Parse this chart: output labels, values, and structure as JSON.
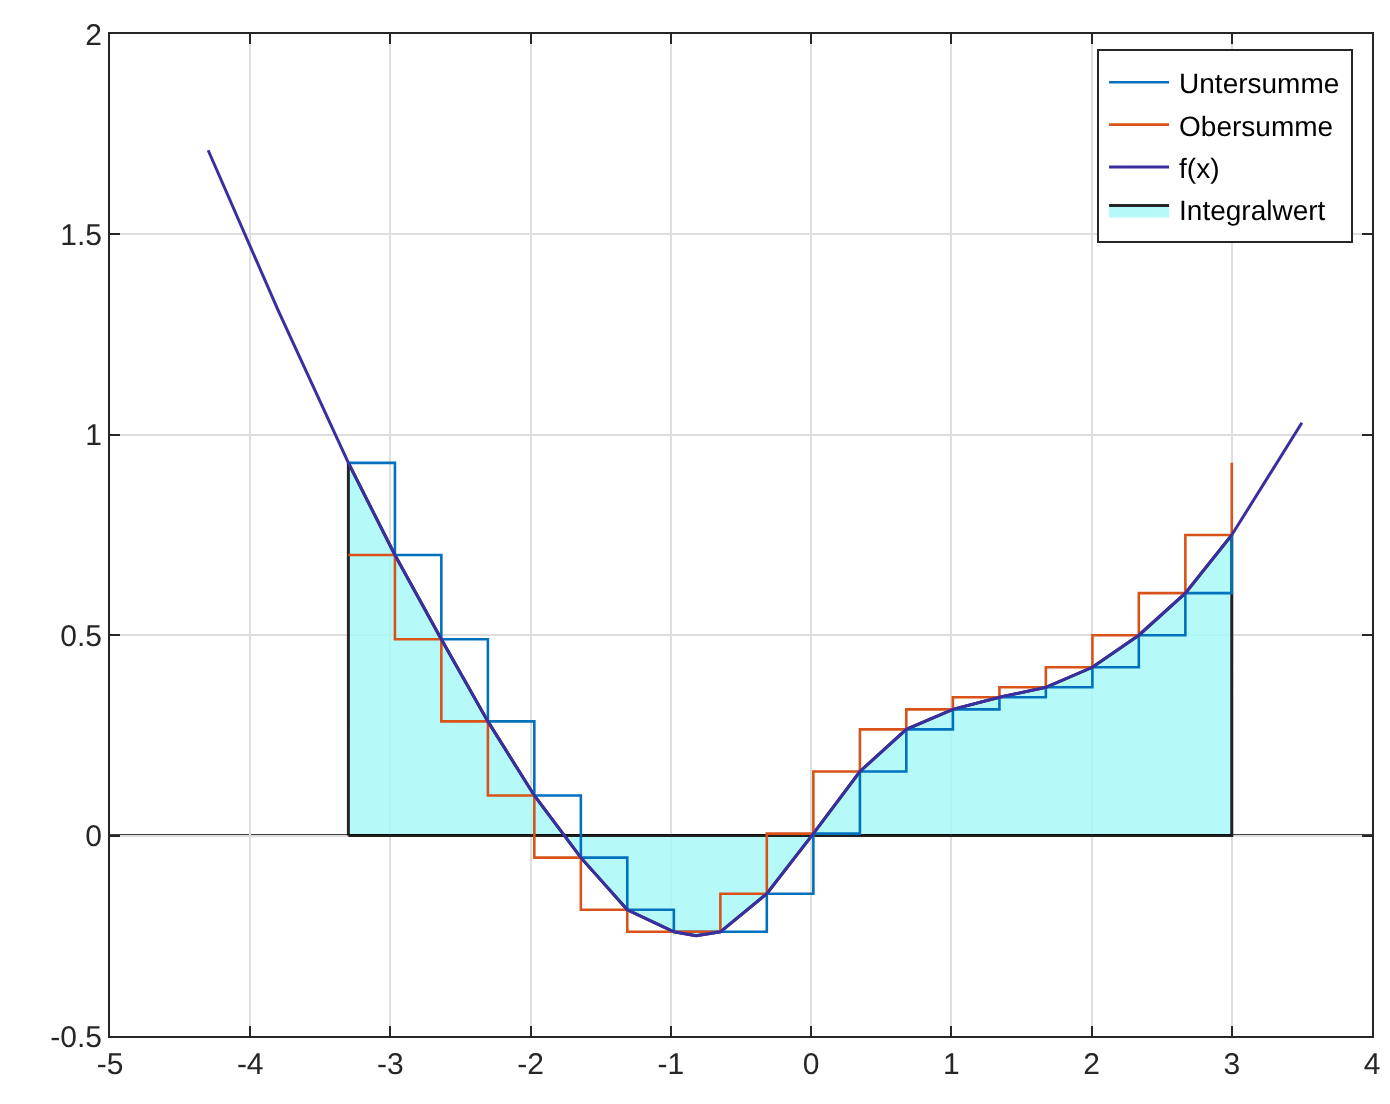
{
  "chart_data": {
    "type": "line",
    "xlim": [
      -5,
      4
    ],
    "xticks": [
      -5,
      -4,
      -3,
      -2,
      -1,
      0,
      1,
      2,
      3,
      4
    ],
    "ylim": [
      -0.5,
      2
    ],
    "yticks": [
      -0.5,
      0,
      0.5,
      1,
      1.5,
      2
    ],
    "grid": true,
    "legend": "top right",
    "ref_lines": [
      {
        "axis": "y",
        "value": 0,
        "color": "#000000"
      }
    ],
    "series": [
      {
        "name": "Untersumme",
        "type": "step",
        "color": "#0072bd",
        "x": [
          -3.3,
          -2.968,
          -2.637,
          -2.305,
          -1.974,
          -1.642,
          -1.311,
          -0.979,
          -0.647,
          -0.316,
          0.016,
          0.348,
          0.679,
          1.011,
          1.343,
          1.674,
          2.006,
          2.337,
          2.669,
          3.0
        ],
        "values": [
          0.93,
          0.7,
          0.49,
          0.285,
          0.1,
          -0.055,
          -0.185,
          -0.24,
          -0.24,
          -0.145,
          0.005,
          0.16,
          0.265,
          0.315,
          0.345,
          0.37,
          0.42,
          0.5,
          0.605,
          0.75
        ]
      },
      {
        "name": "Obersumme",
        "type": "step",
        "color": "#d95319",
        "x": [
          -3.3,
          -2.968,
          -2.637,
          -2.305,
          -1.974,
          -1.642,
          -1.311,
          -0.979,
          -0.647,
          -0.316,
          0.016,
          0.348,
          0.679,
          1.011,
          1.343,
          1.674,
          2.006,
          2.337,
          2.669,
          3.0
        ],
        "values": [
          0.7,
          0.49,
          0.285,
          0.1,
          -0.055,
          -0.185,
          -0.24,
          -0.24,
          -0.145,
          0.005,
          0.16,
          0.265,
          0.315,
          0.345,
          0.37,
          0.42,
          0.5,
          0.605,
          0.75,
          0.93
        ]
      },
      {
        "name": "f(x)",
        "type": "line",
        "color": "#3a2fa0",
        "x": [
          -4.3,
          -3.8,
          -3.3,
          -2.968,
          -2.637,
          -2.305,
          -1.974,
          -1.642,
          -1.311,
          -0.979,
          -0.82,
          -0.647,
          -0.316,
          0.016,
          0.348,
          0.679,
          1.011,
          1.343,
          1.674,
          2.006,
          2.337,
          2.669,
          3.0,
          3.5
        ],
        "values": [
          1.71,
          1.31,
          0.93,
          0.7,
          0.49,
          0.285,
          0.1,
          -0.055,
          -0.185,
          -0.24,
          -0.25,
          -0.24,
          -0.145,
          0.005,
          0.16,
          0.265,
          0.315,
          0.345,
          0.37,
          0.42,
          0.5,
          0.605,
          0.75,
          1.03
        ]
      },
      {
        "name": "Integralwert",
        "type": "area",
        "color": "#aaf8f8",
        "x": [
          -3.3,
          -2.968,
          -2.637,
          -2.305,
          -1.974,
          -1.642,
          -1.311,
          -0.979,
          -0.82,
          -0.647,
          -0.316,
          0.016,
          0.348,
          0.679,
          1.011,
          1.343,
          1.674,
          2.006,
          2.337,
          2.669,
          3.0
        ],
        "values": [
          0.93,
          0.7,
          0.49,
          0.285,
          0.1,
          -0.055,
          -0.185,
          -0.24,
          -0.25,
          -0.24,
          -0.145,
          0.005,
          0.16,
          0.265,
          0.315,
          0.345,
          0.37,
          0.42,
          0.5,
          0.605,
          0.75
        ]
      }
    ]
  }
}
